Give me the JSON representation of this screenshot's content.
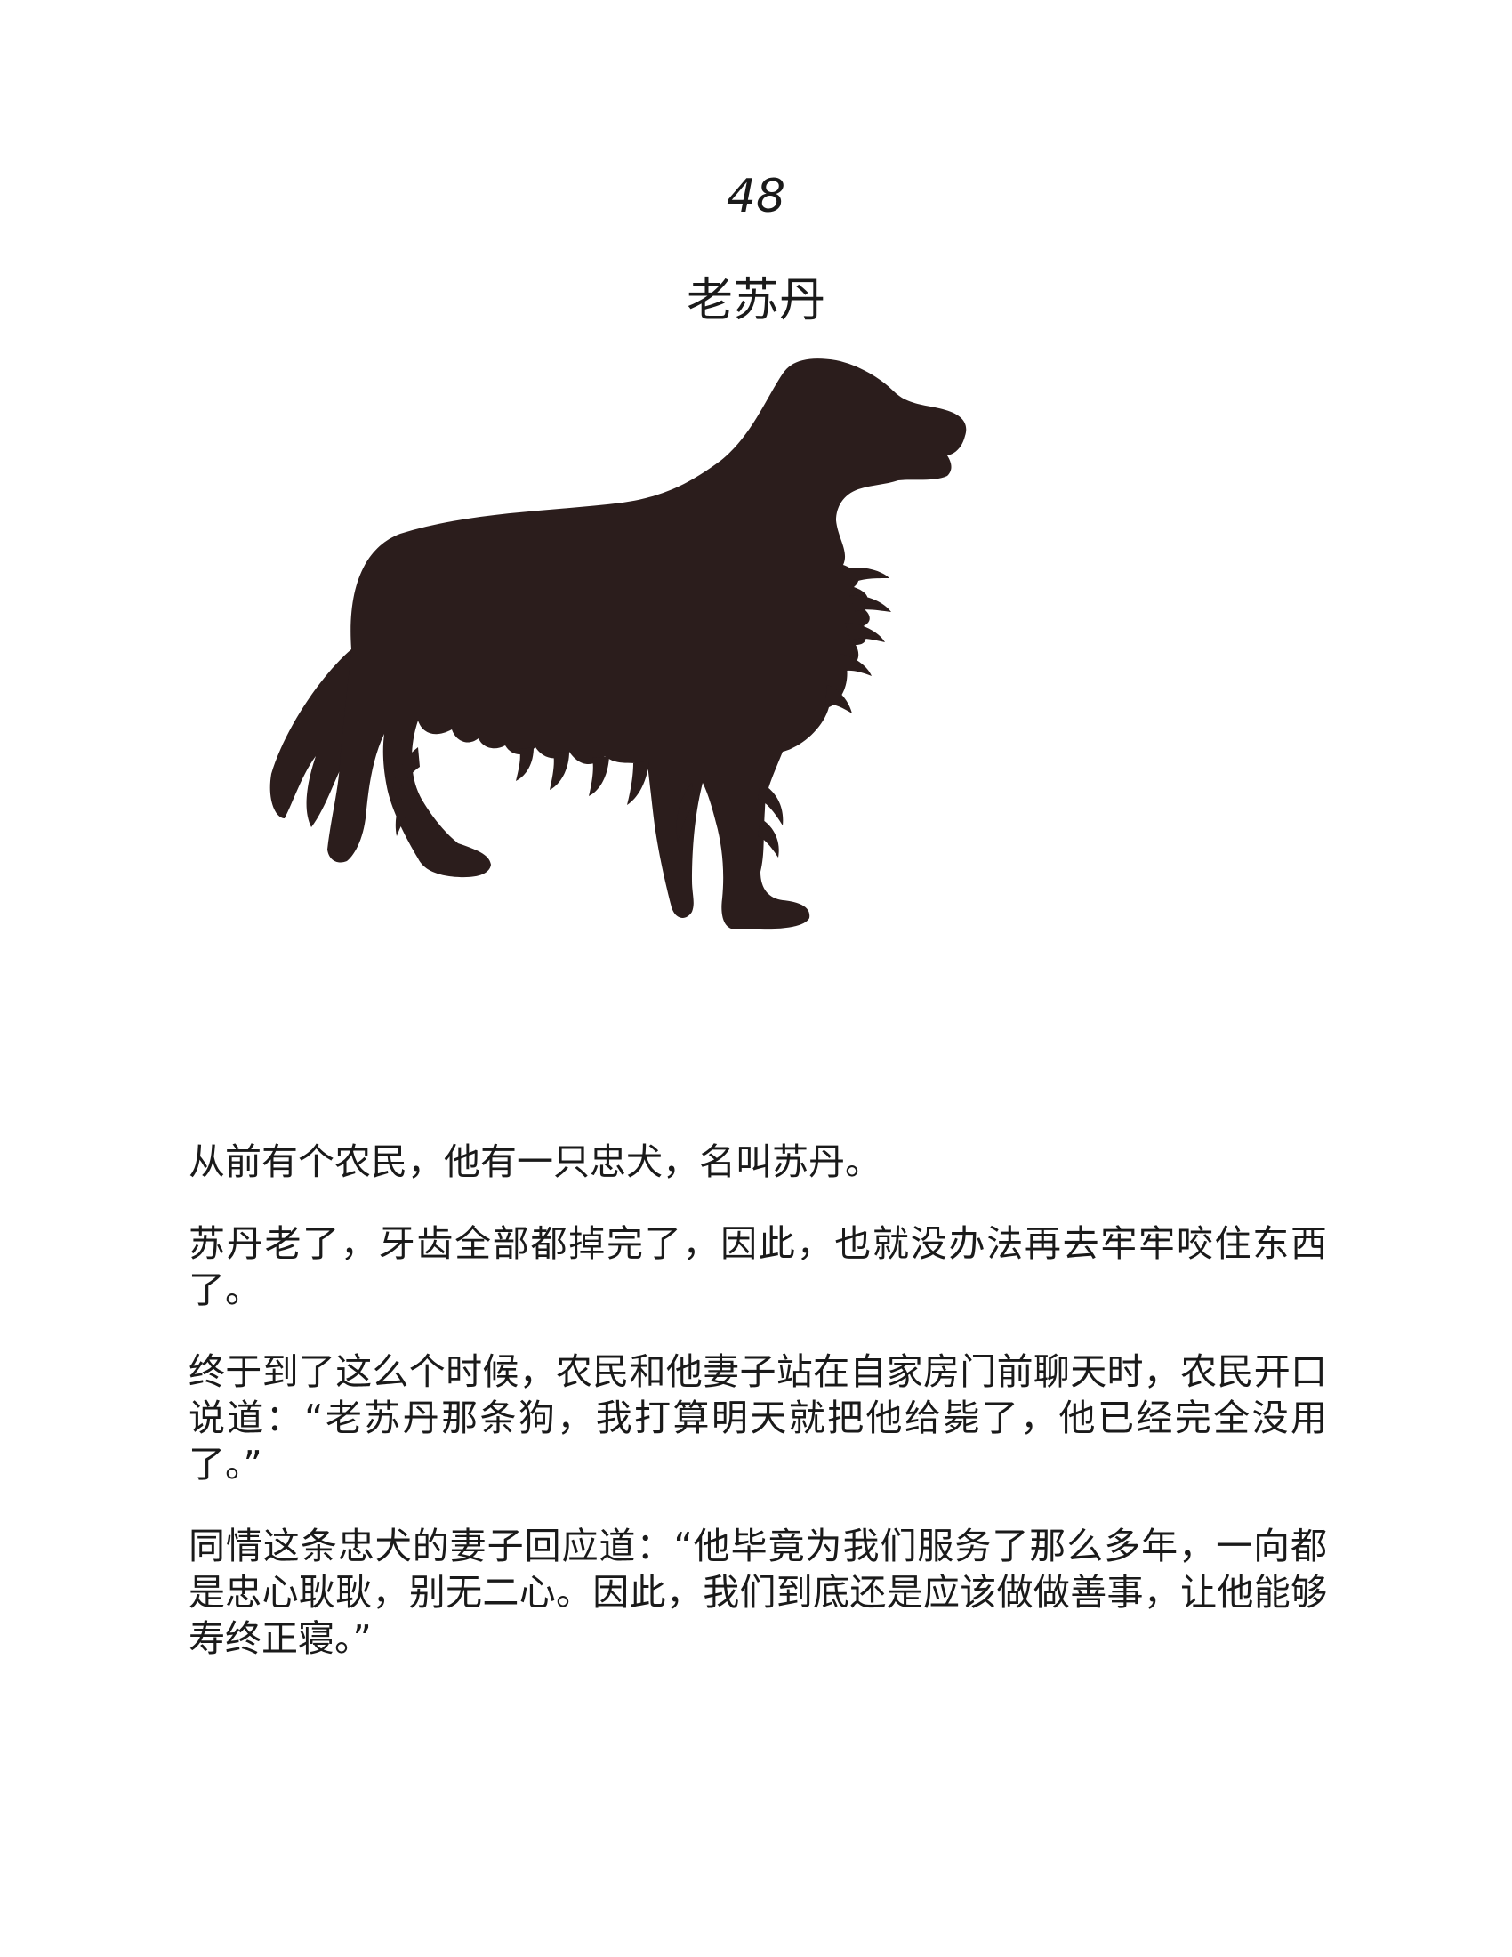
{
  "page": {
    "number": "48",
    "title": "老苏丹"
  },
  "illustration": {
    "icon": "dog-silhouette-icon",
    "fill_color": "#2b1d1c"
  },
  "story": {
    "paragraphs": [
      "从前有个农民，他有一只忠犬，名叫苏丹。",
      "苏丹老了，牙齿全部都掉完了，因此，也就没办法再去牢牢咬住东西了。",
      "终于到了这么个时候，农民和他妻子站在自家房门前聊天时，农民开口说道：“老苏丹那条狗，我打算明天就把他给毙了，他已经完全没用了。”",
      "同情这条忠犬的妻子回应道：“他毕竟为我们服务了那么多年，一向都是忠心耿耿，别无二心。因此，我们到底还是应该做做善事，让他能够寿终正寝。”"
    ]
  }
}
